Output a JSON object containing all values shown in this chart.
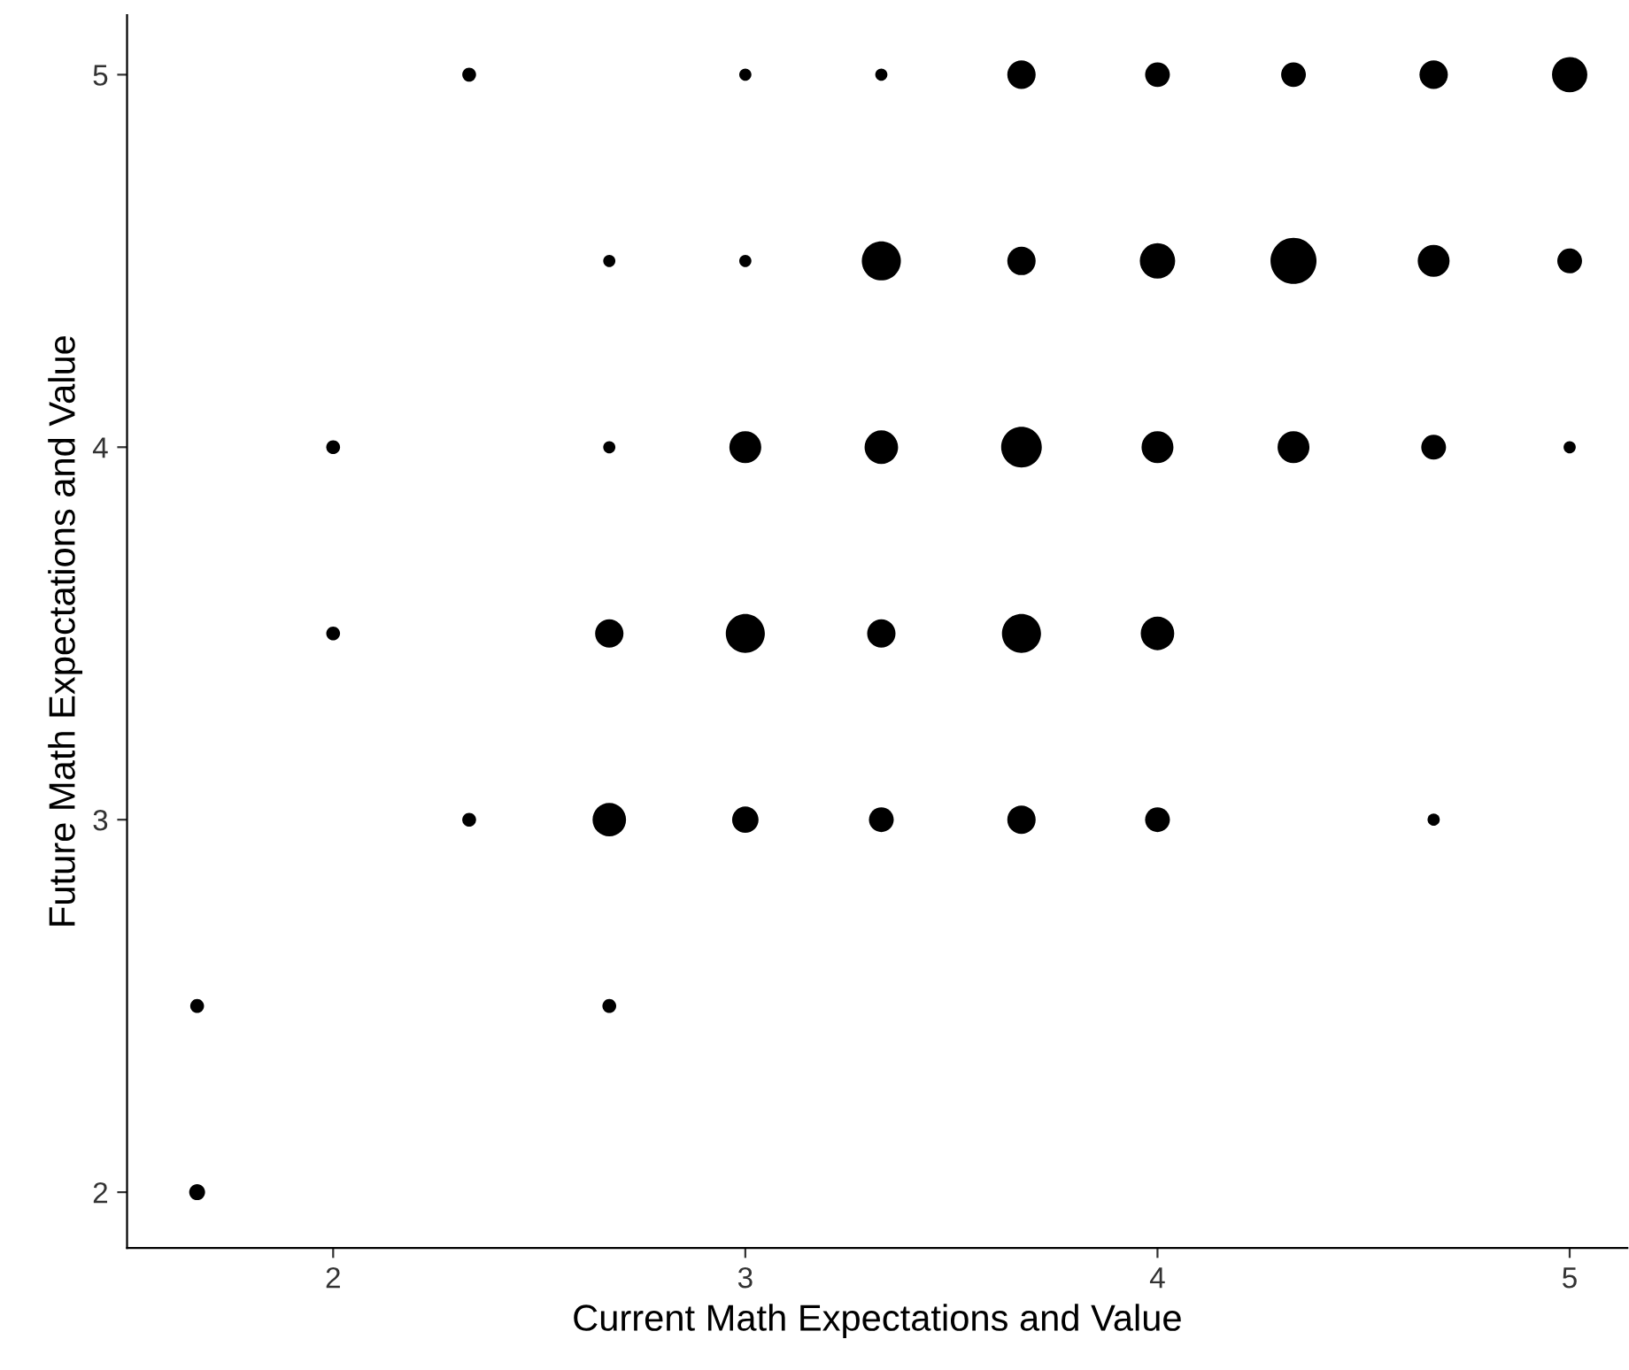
{
  "chart_data": {
    "type": "bubble",
    "xlabel": "Current Math Expectations and Value",
    "ylabel": "Future Math Expectations and Value",
    "x": [
      2.33,
      3,
      3.33,
      3.67,
      4,
      4.33,
      4.67,
      5,
      2.67,
      3,
      3.33,
      3.67,
      4,
      4.33,
      4.67,
      5,
      2,
      2.67,
      3,
      3.33,
      3.67,
      4,
      4.33,
      4.67,
      5,
      2,
      2.67,
      3,
      3.33,
      3.67,
      4,
      2.33,
      2.67,
      3,
      3.33,
      3.67,
      4,
      4.67,
      1.67,
      2.67,
      1.67
    ],
    "values": [
      5,
      5,
      5,
      5,
      5,
      5,
      5,
      5,
      4.5,
      4.5,
      4.5,
      4.5,
      4.5,
      4.5,
      4.5,
      4.5,
      4,
      4,
      4,
      4,
      4,
      4,
      4,
      4,
      4,
      3.5,
      3.5,
      3.5,
      3.5,
      3.5,
      3.5,
      3,
      3,
      3,
      3,
      3,
      3,
      3,
      2.5,
      2.5,
      2
    ],
    "sizes": [
      0.09,
      0.07,
      0.07,
      0.38,
      0.29,
      0.29,
      0.38,
      0.59,
      0.07,
      0.07,
      0.72,
      0.38,
      0.59,
      1,
      0.48,
      0.29,
      0.09,
      0.07,
      0.48,
      0.53,
      0.78,
      0.48,
      0.48,
      0.29,
      0.07,
      0.09,
      0.38,
      0.72,
      0.38,
      0.72,
      0.53,
      0.09,
      0.53,
      0.33,
      0.29,
      0.38,
      0.29,
      0.07,
      0.09,
      0.09,
      0.12
    ],
    "color": "#000000",
    "xlim": [
      1.5,
      5.14
    ],
    "ylim": [
      1.85,
      5.16
    ],
    "xticks": [
      2,
      3,
      4,
      5
    ],
    "yticks": [
      2,
      3,
      4,
      5
    ],
    "grid": false,
    "legend": false,
    "marker": "circle"
  }
}
